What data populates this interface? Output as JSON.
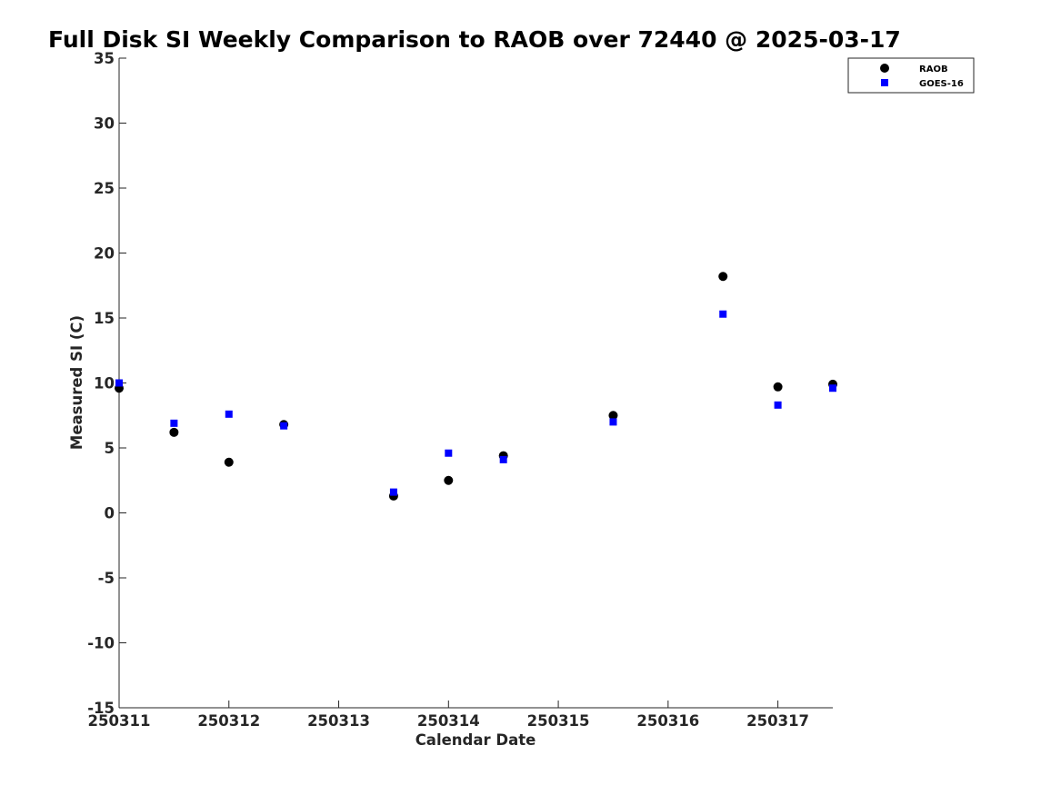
{
  "chart_data": {
    "type": "scatter",
    "title": "Full Disk SI Weekly Comparison to RAOB over 72440 @ 2025-03-17",
    "xlabel": "Calendar Date",
    "ylabel": "Measured SI (C)",
    "xlim": [
      250311,
      250317.5
    ],
    "ylim": [
      -15,
      35
    ],
    "x_ticks": [
      {
        "value": 250311,
        "label": "250311"
      },
      {
        "value": 250312,
        "label": "250312"
      },
      {
        "value": 250313,
        "label": "250313"
      },
      {
        "value": 250314,
        "label": "250314"
      },
      {
        "value": 250315,
        "label": "250315"
      },
      {
        "value": 250316,
        "label": "250316"
      },
      {
        "value": 250317,
        "label": "250317"
      }
    ],
    "y_ticks": [
      {
        "value": 35,
        "label": "35"
      },
      {
        "value": 30,
        "label": "30"
      },
      {
        "value": 25,
        "label": "25"
      },
      {
        "value": 20,
        "label": "20"
      },
      {
        "value": 15,
        "label": "15"
      },
      {
        "value": 10,
        "label": "10"
      },
      {
        "value": 5,
        "label": "5"
      },
      {
        "value": 0,
        "label": "0"
      },
      {
        "value": -5,
        "label": "-5"
      },
      {
        "value": -10,
        "label": "-10"
      },
      {
        "value": -15,
        "label": "-15"
      }
    ],
    "grid": false,
    "legend_position": "top-right",
    "series": [
      {
        "name": "RAOB",
        "marker": "circle",
        "color": "#000000",
        "points": [
          {
            "x": 250311.0,
            "y": 9.6
          },
          {
            "x": 250311.5,
            "y": 6.2
          },
          {
            "x": 250312.0,
            "y": 3.9
          },
          {
            "x": 250312.5,
            "y": 6.8
          },
          {
            "x": 250313.5,
            "y": 1.3
          },
          {
            "x": 250314.0,
            "y": 2.5
          },
          {
            "x": 250314.5,
            "y": 4.4
          },
          {
            "x": 250315.5,
            "y": 7.5
          },
          {
            "x": 250316.5,
            "y": 18.2
          },
          {
            "x": 250317.0,
            "y": 9.7
          },
          {
            "x": 250317.5,
            "y": 9.9
          }
        ]
      },
      {
        "name": "GOES-16",
        "marker": "square",
        "color": "#0000ff",
        "points": [
          {
            "x": 250311.0,
            "y": 10.0
          },
          {
            "x": 250311.5,
            "y": 6.9
          },
          {
            "x": 250312.0,
            "y": 7.6
          },
          {
            "x": 250312.5,
            "y": 6.7
          },
          {
            "x": 250313.5,
            "y": 1.6
          },
          {
            "x": 250314.0,
            "y": 4.6
          },
          {
            "x": 250314.5,
            "y": 4.1
          },
          {
            "x": 250315.5,
            "y": 7.0
          },
          {
            "x": 250316.5,
            "y": 15.3
          },
          {
            "x": 250317.0,
            "y": 8.3
          },
          {
            "x": 250317.5,
            "y": 9.6
          }
        ]
      }
    ]
  }
}
